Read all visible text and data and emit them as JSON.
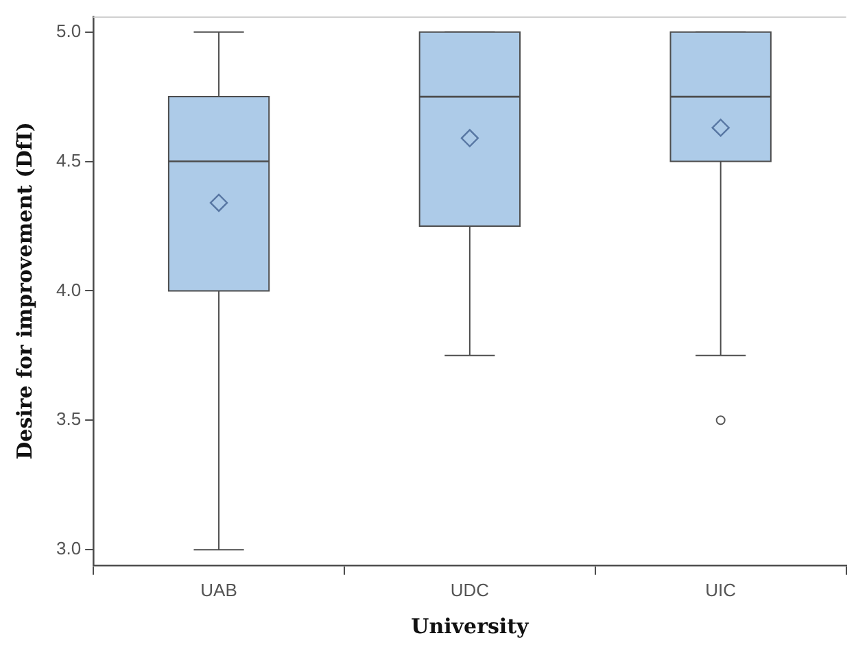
{
  "chart_data": {
    "type": "box",
    "xlabel": "University",
    "ylabel": "Desire for improvement (DfI)",
    "categories": [
      "UAB",
      "UDC",
      "UIC"
    ],
    "color": "#adcbe8",
    "boxes": [
      {
        "low": 3.0,
        "q1": 4.0,
        "median": 4.5,
        "q3": 4.75,
        "high": 5.0,
        "mean": 4.34
      },
      {
        "low": 3.75,
        "q1": 4.25,
        "median": 4.75,
        "q3": 5.0,
        "high": 5.0,
        "mean": 4.59
      },
      {
        "low": 3.75,
        "q1": 4.5,
        "median": 4.75,
        "q3": 5.0,
        "high": 5.0,
        "mean": 4.63,
        "outliers": [
          3.5
        ]
      }
    ],
    "ylim": [
      2.94,
      5.06
    ],
    "yticks": [
      {
        "value": 3,
        "label": "3.0"
      },
      {
        "value": 3.5,
        "label": "3.5"
      },
      {
        "value": 4,
        "label": "4.0"
      },
      {
        "value": 4.5,
        "label": "4.5"
      },
      {
        "value": 5,
        "label": "5.0"
      }
    ]
  }
}
